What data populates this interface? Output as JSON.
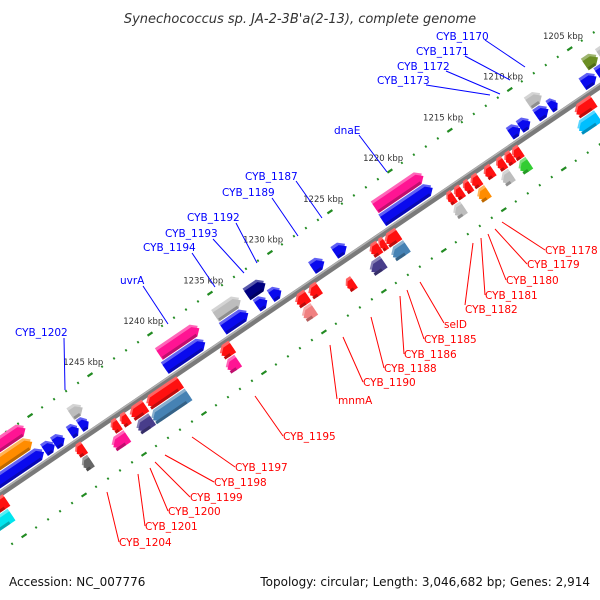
{
  "title": "Synechococcus sp. JA-2-3B'a(2-13), complete genome",
  "ticks": [
    "1205 kbp",
    "1210 kbp",
    "1215 kbp",
    "1220 kbp",
    "1225 kbp",
    "1230 kbp",
    "1235 kbp",
    "1240 kbp",
    "1245 kbp"
  ],
  "forward_labels": [
    "CYB_1170",
    "CYB_1171",
    "CYB_1172",
    "CYB_1173",
    "dnaE",
    "CYB_1187",
    "CYB_1189",
    "CYB_1192",
    "CYB_1193",
    "CYB_1194",
    "uvrA",
    "CYB_1202"
  ],
  "reverse_labels": [
    "CYB_1178",
    "CYB_1179",
    "CYB_1180",
    "CYB_1181",
    "CYB_1182",
    "selD",
    "CYB_1185",
    "CYB_1186",
    "CYB_1188",
    "CYB_1190",
    "mnmA",
    "CYB_1195",
    "CYB_1197",
    "CYB_1198",
    "CYB_1199",
    "CYB_1200",
    "CYB_1201",
    "CYB_1204"
  ],
  "footer": {
    "accession": "Accession: NC_007776",
    "summary": "Topology: circular; Length: 3,046,682 bp; Genes: 2,914"
  },
  "colors": {
    "forward": "#0000ff",
    "reverse": "#ff0000",
    "backbone": "#888888",
    "tick": "#228b22"
  }
}
